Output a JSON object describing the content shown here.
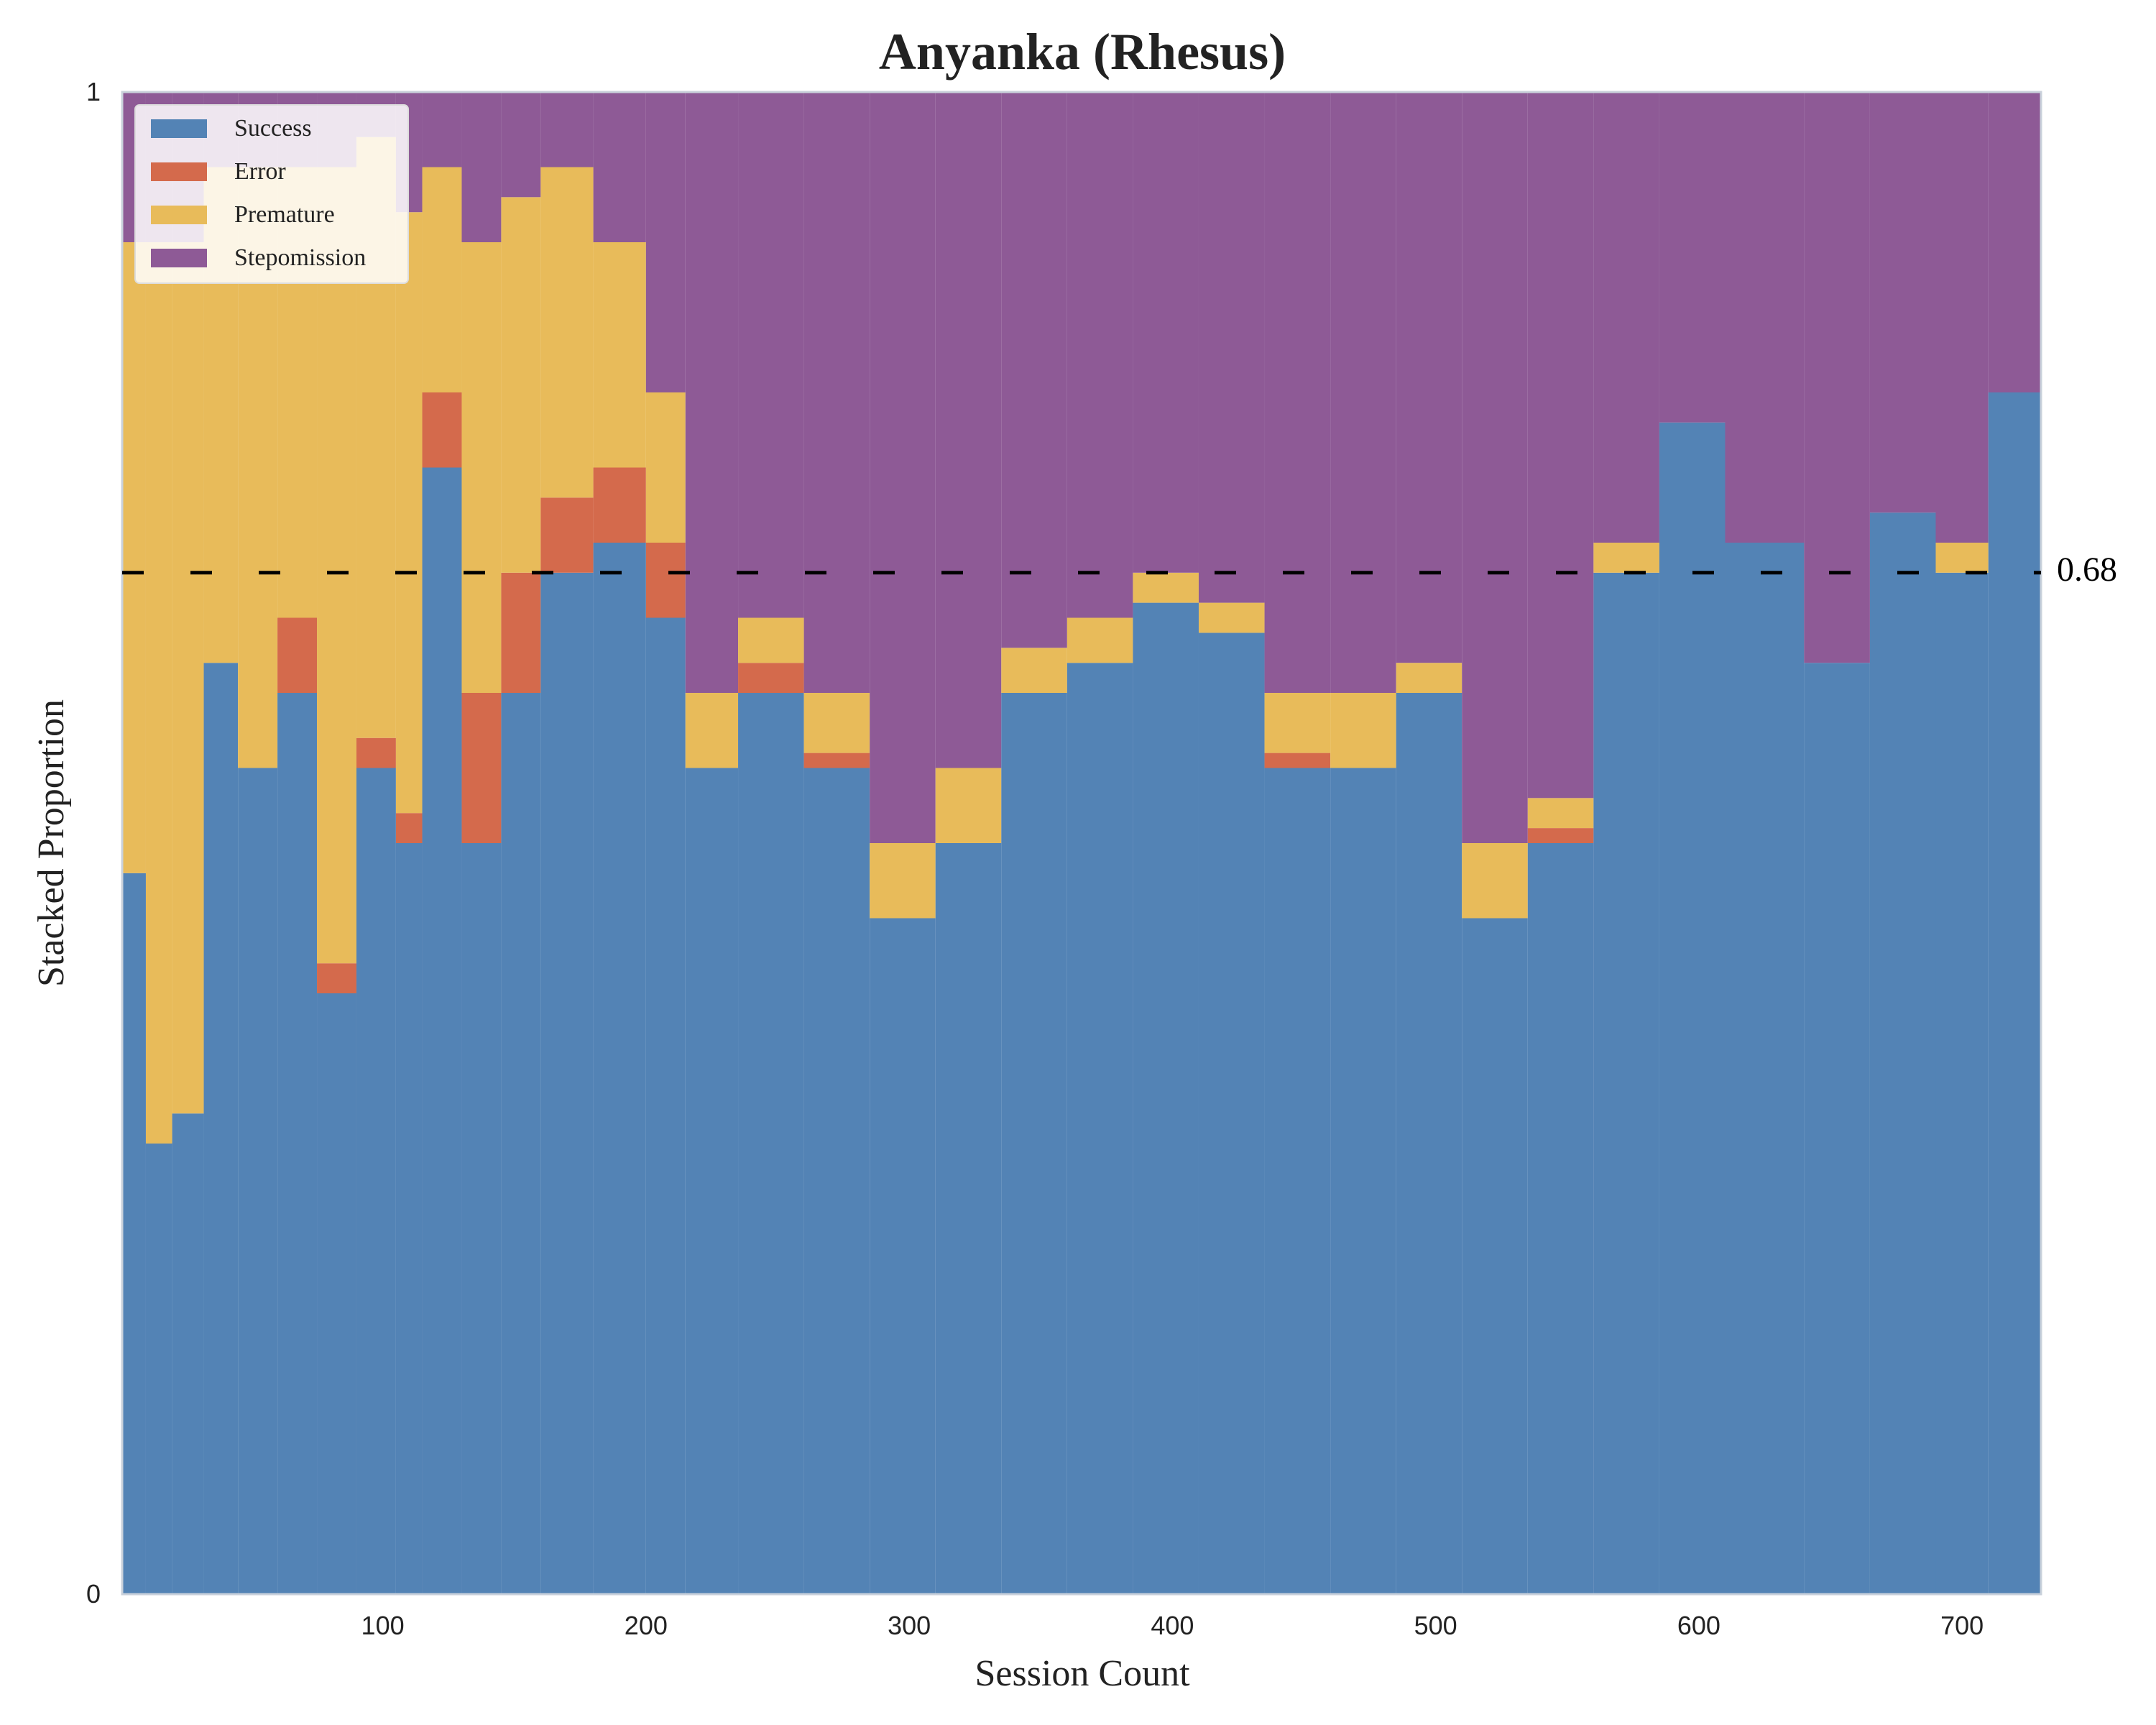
{
  "chart_data": {
    "type": "bar",
    "stacked": true,
    "title": "Anyanka (Rhesus)",
    "xlabel": "Session Count",
    "ylabel": "Stacked Proportion",
    "xlim": [
      1,
      730
    ],
    "ylim": [
      0,
      1
    ],
    "xticks": [
      100,
      200,
      300,
      400,
      500,
      600,
      700
    ],
    "yticks": [
      {
        "value": 0,
        "label": "0"
      },
      {
        "value": 1,
        "label": "1"
      }
    ],
    "grid": false,
    "legend_position": "top-left",
    "reference_line": {
      "value": 0.68,
      "label": "0.68",
      "style": "dashed",
      "color": "#000000"
    },
    "series": [
      {
        "name": "Success",
        "color": "#5383b5"
      },
      {
        "name": "Error",
        "color": "#d46a4c"
      },
      {
        "name": "Premature",
        "color": "#e8bb5a"
      },
      {
        "name": "Stepomission",
        "color": "#8e5a96"
      }
    ],
    "segments": [
      {
        "x0": 1,
        "x1": 10,
        "values": [
          0.48,
          0.0,
          0.42,
          0.1
        ]
      },
      {
        "x0": 10,
        "x1": 20,
        "values": [
          0.3,
          0.0,
          0.6,
          0.1
        ]
      },
      {
        "x0": 20,
        "x1": 32,
        "values": [
          0.32,
          0.0,
          0.58,
          0.1
        ]
      },
      {
        "x0": 32,
        "x1": 45,
        "values": [
          0.62,
          0.0,
          0.33,
          0.05
        ]
      },
      {
        "x0": 45,
        "x1": 60,
        "values": [
          0.55,
          0.0,
          0.4,
          0.05
        ]
      },
      {
        "x0": 60,
        "x1": 75,
        "values": [
          0.6,
          0.05,
          0.3,
          0.05
        ]
      },
      {
        "x0": 75,
        "x1": 90,
        "values": [
          0.4,
          0.02,
          0.53,
          0.05
        ]
      },
      {
        "x0": 90,
        "x1": 105,
        "values": [
          0.55,
          0.02,
          0.4,
          0.03
        ]
      },
      {
        "x0": 105,
        "x1": 115,
        "values": [
          0.5,
          0.02,
          0.4,
          0.08
        ]
      },
      {
        "x0": 115,
        "x1": 130,
        "values": [
          0.75,
          0.05,
          0.15,
          0.05
        ]
      },
      {
        "x0": 130,
        "x1": 145,
        "values": [
          0.5,
          0.1,
          0.3,
          0.1
        ]
      },
      {
        "x0": 145,
        "x1": 160,
        "values": [
          0.6,
          0.08,
          0.25,
          0.07
        ]
      },
      {
        "x0": 160,
        "x1": 180,
        "values": [
          0.68,
          0.05,
          0.22,
          0.05
        ]
      },
      {
        "x0": 180,
        "x1": 200,
        "values": [
          0.7,
          0.05,
          0.15,
          0.1
        ]
      },
      {
        "x0": 200,
        "x1": 215,
        "values": [
          0.65,
          0.05,
          0.1,
          0.2
        ]
      },
      {
        "x0": 215,
        "x1": 235,
        "values": [
          0.55,
          0.0,
          0.05,
          0.4
        ]
      },
      {
        "x0": 235,
        "x1": 260,
        "values": [
          0.6,
          0.02,
          0.03,
          0.35
        ]
      },
      {
        "x0": 260,
        "x1": 285,
        "values": [
          0.55,
          0.01,
          0.04,
          0.4
        ]
      },
      {
        "x0": 285,
        "x1": 310,
        "values": [
          0.45,
          0.0,
          0.05,
          0.5
        ]
      },
      {
        "x0": 310,
        "x1": 335,
        "values": [
          0.5,
          0.0,
          0.05,
          0.45
        ]
      },
      {
        "x0": 335,
        "x1": 360,
        "values": [
          0.6,
          0.0,
          0.03,
          0.37
        ]
      },
      {
        "x0": 360,
        "x1": 385,
        "values": [
          0.62,
          0.0,
          0.03,
          0.35
        ]
      },
      {
        "x0": 385,
        "x1": 410,
        "values": [
          0.66,
          0.0,
          0.02,
          0.32
        ]
      },
      {
        "x0": 410,
        "x1": 435,
        "values": [
          0.64,
          0.0,
          0.02,
          0.34
        ]
      },
      {
        "x0": 435,
        "x1": 460,
        "values": [
          0.55,
          0.01,
          0.04,
          0.4
        ]
      },
      {
        "x0": 460,
        "x1": 485,
        "values": [
          0.55,
          0.0,
          0.05,
          0.4
        ]
      },
      {
        "x0": 485,
        "x1": 510,
        "values": [
          0.6,
          0.0,
          0.02,
          0.38
        ]
      },
      {
        "x0": 510,
        "x1": 535,
        "values": [
          0.45,
          0.0,
          0.05,
          0.5
        ]
      },
      {
        "x0": 535,
        "x1": 560,
        "values": [
          0.5,
          0.01,
          0.02,
          0.47
        ]
      },
      {
        "x0": 560,
        "x1": 585,
        "values": [
          0.68,
          0.0,
          0.02,
          0.3
        ]
      },
      {
        "x0": 585,
        "x1": 610,
        "values": [
          0.78,
          0.0,
          0.0,
          0.22
        ]
      },
      {
        "x0": 610,
        "x1": 640,
        "values": [
          0.7,
          0.0,
          0.0,
          0.3
        ]
      },
      {
        "x0": 640,
        "x1": 665,
        "values": [
          0.62,
          0.0,
          0.0,
          0.38
        ]
      },
      {
        "x0": 665,
        "x1": 690,
        "values": [
          0.72,
          0.0,
          0.0,
          0.28
        ]
      },
      {
        "x0": 690,
        "x1": 710,
        "values": [
          0.68,
          0.0,
          0.02,
          0.3
        ]
      },
      {
        "x0": 710,
        "x1": 730,
        "values": [
          0.8,
          0.0,
          0.0,
          0.2
        ]
      }
    ]
  }
}
